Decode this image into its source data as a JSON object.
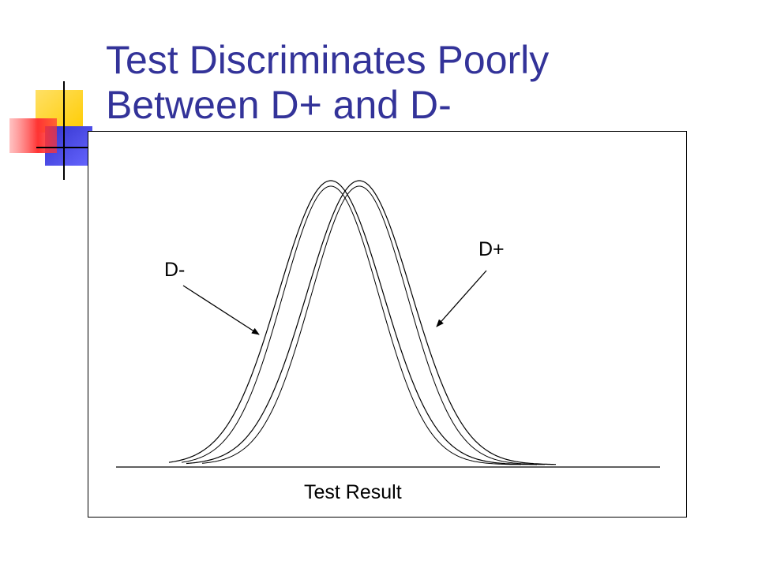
{
  "slide": {
    "title_line1": "Test Discriminates Poorly",
    "title_line2": "Between D+ and D-",
    "title_color": "#333399"
  },
  "decoration": {
    "colors": [
      "#FFCC00",
      "#FF3333",
      "#3333CC"
    ],
    "icon": "corner-color-squares"
  },
  "figure": {
    "curve_left_label": "D-",
    "curve_right_label": "D+",
    "axis_label": "Test Result",
    "curves": [
      {
        "name": "D-",
        "shape": "bell"
      },
      {
        "name": "D+",
        "shape": "bell"
      }
    ]
  }
}
